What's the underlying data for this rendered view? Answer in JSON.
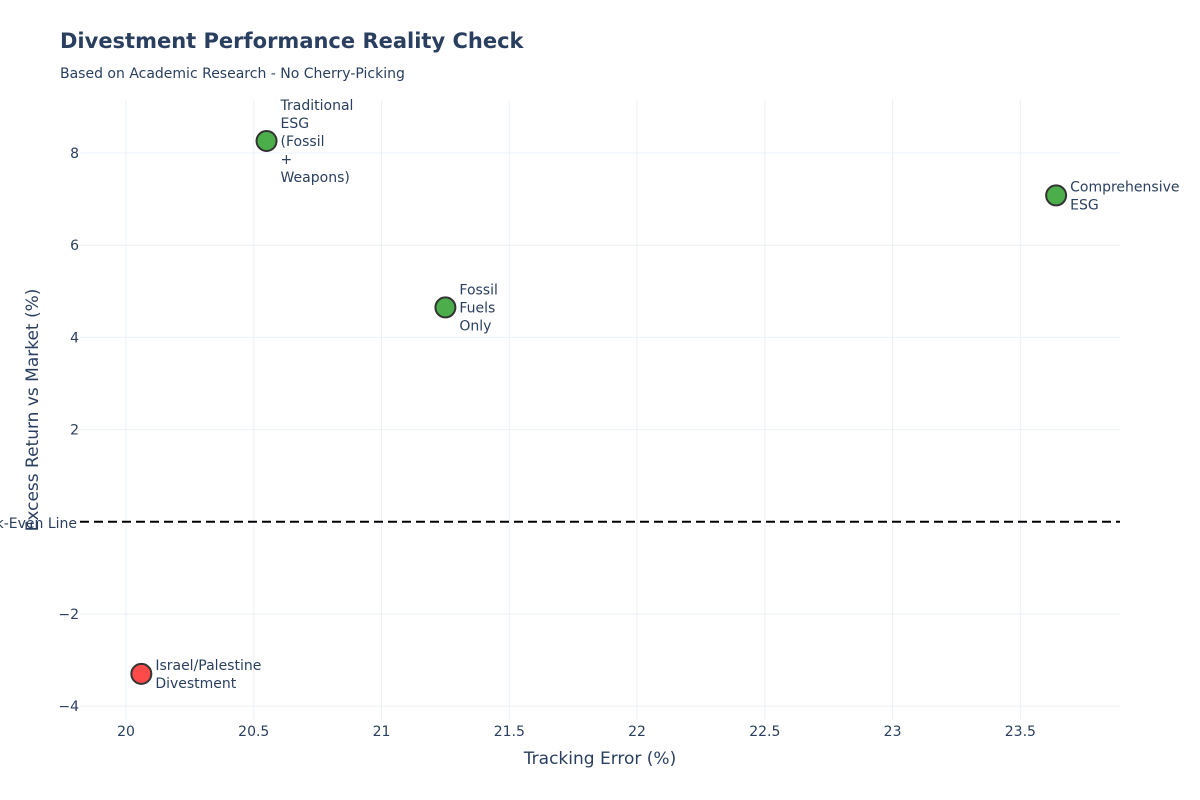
{
  "chart_data": {
    "type": "scatter",
    "title": "Divestment Performance Reality Check",
    "subtitle": "Based on Academic Research - No Cherry-Picking",
    "xlabel": "Tracking Error (%)",
    "ylabel": "Excess Return vs Market (%)",
    "xlim": [
      19.82,
      23.89
    ],
    "ylim": [
      -4.3,
      9.15
    ],
    "xticks": [
      20,
      20.5,
      21,
      21.5,
      22,
      22.5,
      23,
      23.5
    ],
    "xtick_labels": [
      "20",
      "20.5",
      "21",
      "21.5",
      "22",
      "22.5",
      "23",
      "23.5"
    ],
    "yticks": [
      -4,
      -2,
      0,
      2,
      4,
      6,
      8
    ],
    "ytick_labels": [
      "−4",
      "−2",
      "",
      "2",
      "4",
      "6",
      "8"
    ],
    "grid": true,
    "reference_line": {
      "y": 0,
      "label": "Break-Even Line",
      "style": "dashed",
      "color": "#000000"
    },
    "points": [
      {
        "label_lines": [
          "Traditional",
          "ESG",
          "(Fossil",
          "+",
          "Weapons)"
        ],
        "x": 20.55,
        "y": 8.26,
        "color": "#2ca02c"
      },
      {
        "label_lines": [
          "Comprehensive",
          "ESG"
        ],
        "x": 23.64,
        "y": 7.08,
        "color": "#2ca02c"
      },
      {
        "label_lines": [
          "Fossil",
          "Fuels",
          "Only"
        ],
        "x": 21.25,
        "y": 4.65,
        "color": "#2ca02c"
      },
      {
        "label_lines": [
          "Israel/Palestine",
          "Divestment"
        ],
        "x": 20.06,
        "y": -3.3,
        "color": "#ff2a2a"
      }
    ]
  }
}
